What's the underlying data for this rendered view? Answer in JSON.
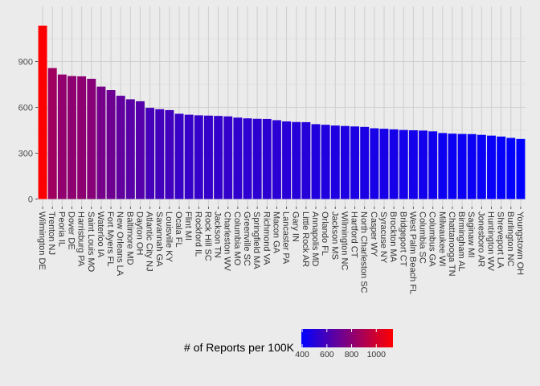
{
  "chart_data": {
    "type": "bar",
    "title": "",
    "xlabel": "",
    "ylabel": "",
    "ylim": [
      0,
      1140
    ],
    "y_ticks": [
      0,
      300,
      600,
      900
    ],
    "grid": true,
    "legend": {
      "position": "bottom",
      "title": "# of Reports per 100K",
      "ticks": [
        400,
        600,
        800,
        1000
      ],
      "range": [
        393,
        1135
      ],
      "colors": {
        "low": "#0000ff",
        "high": "#ff0000"
      }
    },
    "categories": [
      "Wilmington DE",
      "Trenton NJ",
      "Peoria IL",
      "Dover DE",
      "Harrisburg PA",
      "Saint Louis MO",
      "Waterloo IA",
      "Fort Myers FL",
      "New Orleans LA",
      "Baltimore MD",
      "Dayton OH",
      "Atlantic City NJ",
      "Savannah GA",
      "Louisville KY",
      "Ocala FL",
      "Flint MI",
      "Rockford IL",
      "Rock Hill SC",
      "Jackson TN",
      "Charleston WV",
      "Columbia MO",
      "Greenville SC",
      "Springfield MA",
      "Richmond VA",
      "Macon GA",
      "Lancaster PA",
      "Gary IN",
      "Little Rock AR",
      "Annapolis MD",
      "Orlando FL",
      "Jackson MS",
      "Wilmington NC",
      "Hartford CT",
      "North Charleston SC",
      "Casper WY",
      "Syracuse NY",
      "Brockton MA",
      "Bridgeport CT",
      "West Palm Beach FL",
      "Columbia SC",
      "Columbus GA",
      "Milwaukee WI",
      "Chattanooga TN",
      "Birmingham AL",
      "Saginaw MI",
      "Jonesboro AR",
      "Huntington WV",
      "Shreveport LA",
      "Burlington NC",
      "Youngstown OH"
    ],
    "values": [
      1135,
      857,
      815,
      805,
      803,
      787,
      736,
      713,
      676,
      653,
      640,
      597,
      588,
      582,
      558,
      552,
      548,
      546,
      544,
      541,
      533,
      528,
      525,
      524,
      516,
      508,
      504,
      503,
      490,
      486,
      481,
      478,
      475,
      472,
      463,
      460,
      456,
      452,
      450,
      448,
      443,
      432,
      428,
      426,
      425,
      420,
      415,
      409,
      400,
      393
    ]
  }
}
